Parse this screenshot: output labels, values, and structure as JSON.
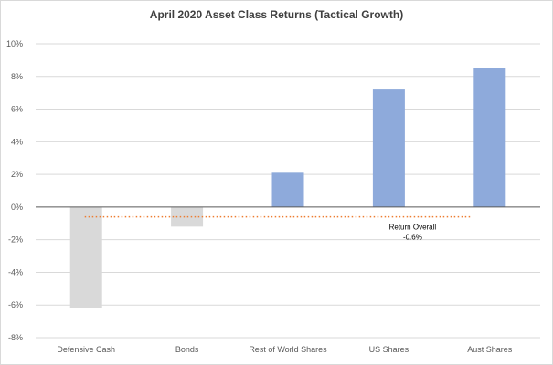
{
  "chart_data": {
    "type": "bar",
    "title": "April 2020 Asset Class Returns (Tactical Growth)",
    "xlabel": "",
    "ylabel": "",
    "categories": [
      "Defensive Cash",
      "Bonds",
      "Rest of World Shares",
      "US Shares",
      "Aust Shares"
    ],
    "values": [
      -6.2,
      -1.2,
      2.1,
      7.2,
      8.5
    ],
    "bar_colors": [
      "#d9d9d9",
      "#d9d9d9",
      "#8eaadb",
      "#8eaadb",
      "#8eaadb"
    ],
    "ylim": [
      -8,
      10
    ],
    "y_ticks": [
      -8,
      -6,
      -4,
      -2,
      0,
      2,
      4,
      6,
      8,
      10
    ],
    "y_tick_labels": [
      "-8%",
      "-6%",
      "-4%",
      "-2%",
      "0%",
      "2%",
      "4%",
      "6%",
      "8%",
      "10%"
    ],
    "grid": true,
    "legend": "none",
    "reference_line": {
      "value": -0.6,
      "color": "#ed7d31",
      "style": "dotted",
      "label_line1": "Return Overall",
      "label_line2": "-0.6%"
    }
  }
}
